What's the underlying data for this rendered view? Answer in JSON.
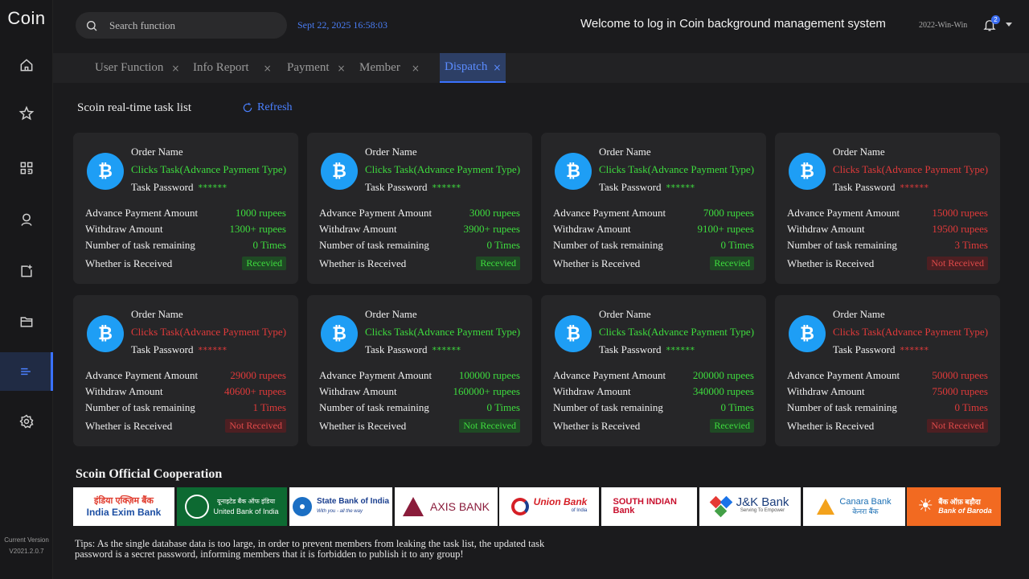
{
  "app": {
    "logo": "Coin",
    "version_label": "Current Version",
    "version": "V2021.2.0.7"
  },
  "header": {
    "search_placeholder": "Search function",
    "datetime": "Sept 22, 2025 16:58:03",
    "welcome": "Welcome to log in Coin background management system",
    "user": "2022-Win-Win",
    "notification_count": "2"
  },
  "sidebar": {
    "items": [
      {
        "icon": "home-icon"
      },
      {
        "icon": "star-icon"
      },
      {
        "icon": "grid-icon"
      },
      {
        "icon": "user-icon"
      },
      {
        "icon": "note-icon"
      },
      {
        "icon": "folder-icon"
      },
      {
        "icon": "dispatch-icon",
        "active": true
      },
      {
        "icon": "gear-icon"
      }
    ]
  },
  "tabs": [
    {
      "label": "User Function"
    },
    {
      "label": "Info Report"
    },
    {
      "label": "Payment"
    },
    {
      "label": "Member"
    },
    {
      "label": "Dispatch",
      "active": true
    }
  ],
  "main": {
    "title": "Scoin real-time task list",
    "refresh": "Refresh",
    "labels": {
      "order_name": "Order Name",
      "task_password": "Task Password",
      "advance": "Advance Payment Amount",
      "withdraw": "Withdraw Amount",
      "remaining": "Number of task remaining",
      "received": "Whether is Received"
    },
    "cards": [
      {
        "type": "Clicks Task(Advance Payment Type)",
        "password": "******",
        "advance": "1000 rupees",
        "withdraw": "1300+ rupees",
        "remaining": "0 Times",
        "status": "Recevied",
        "color": "#3edc3e"
      },
      {
        "type": "Clicks Task(Advance Payment Type)",
        "password": "******",
        "advance": "3000 rupees",
        "withdraw": "3900+ rupees",
        "remaining": "0 Times",
        "status": "Recevied",
        "color": "#3edc3e"
      },
      {
        "type": "Clicks Task(Advance Payment Type)",
        "password": "******",
        "advance": "7000 rupees",
        "withdraw": "9100+ rupees",
        "remaining": "0 Times",
        "status": "Recevied",
        "color": "#3edc3e"
      },
      {
        "type": "Clicks Task(Advance Payment Type)",
        "password": "******",
        "advance": "15000 rupees",
        "withdraw": "19500 rupees",
        "remaining": "3 Times",
        "status": "Not Received",
        "color": "#e03a3a"
      },
      {
        "type": "Clicks Task(Advance Payment Type)",
        "password": "******",
        "advance": "29000 rupees",
        "withdraw": "40600+ rupees",
        "remaining": "1 Times",
        "status": "Not Received",
        "color": "#e03a3a"
      },
      {
        "type": "Clicks Task(Advance Payment Type)",
        "password": "******",
        "advance": "100000 rupees",
        "withdraw": "160000+ rupees",
        "remaining": "0 Times",
        "status": "Not Received",
        "color": "#3edc3e"
      },
      {
        "type": "Clicks Task(Advance Payment Type)",
        "password": "******",
        "advance": "200000 rupees",
        "withdraw": "340000 rupees",
        "remaining": "0 Times",
        "status": "Recevied",
        "color": "#3edc3e"
      },
      {
        "type": "Clicks Task(Advance Payment Type)",
        "password": "******",
        "advance": "50000 rupees",
        "withdraw": "75000 rupees",
        "remaining": "0 Times",
        "status": "Not Received",
        "color": "#e03a3a"
      }
    ]
  },
  "cooperation": {
    "title": "Scoin Official Cooperation",
    "banks": [
      {
        "name": "India Exim Bank",
        "hindi": "इंडिया एक्ज़िम बैंक",
        "color": "#1d4fa3"
      },
      {
        "name": "United Bank of India",
        "hindi": "यूनाइटेड बैंक ऑफ इंडिया",
        "color": "#ffffff"
      },
      {
        "name": "State Bank of India",
        "tagline": "With you - all the way",
        "color": "#1b3f8f"
      },
      {
        "name": "AXIS BANK",
        "color": "#8a1c3b"
      },
      {
        "name": "Union Bank",
        "tagline": "of India",
        "color": "#d51f26"
      },
      {
        "name": "SOUTH INDIAN Bank",
        "color": "#c8102e"
      },
      {
        "name": "J&K Bank",
        "tagline": "Serving To Empower",
        "color": "#1a3d7c"
      },
      {
        "name": "Canara Bank",
        "hindi": "केनरा बैंक",
        "color": "#1b6fb4"
      },
      {
        "name": "Bank of Baroda",
        "hindi": "बैंक ऑफ़ बड़ौदा",
        "color": "#ffffff"
      }
    ]
  },
  "tips": "Tips: As the single database data is too large, in order to prevent members from leaking the task list, the updated task password is a secret password, informing members that it is forbidden to publish it to any group!"
}
